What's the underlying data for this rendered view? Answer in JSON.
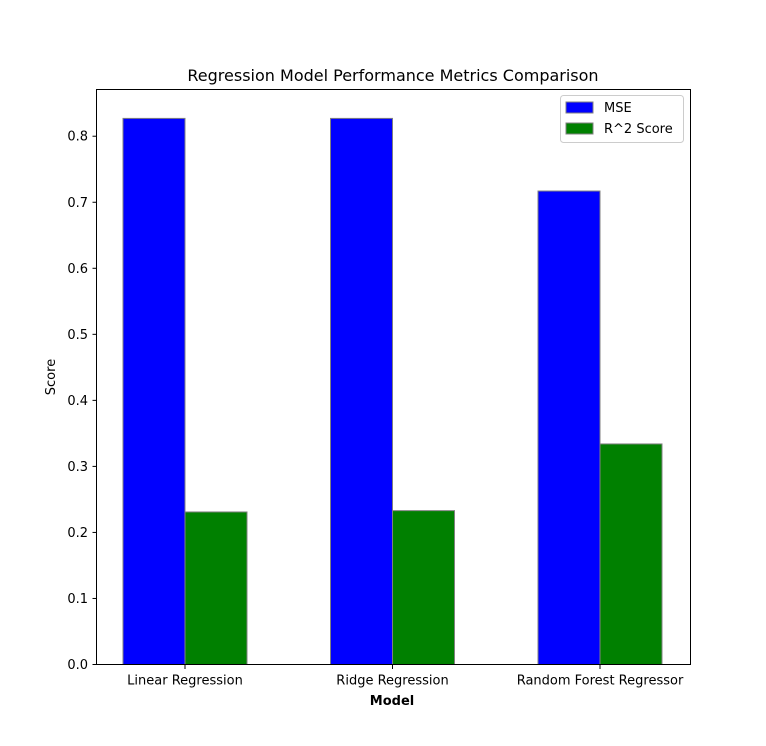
{
  "chart_data": {
    "type": "bar",
    "title": "Regression Model Performance Metrics Comparison",
    "xlabel": "Model",
    "ylabel": "Score",
    "categories": [
      "Linear Regression",
      "Ridge Regression",
      "Random Forest Regressor"
    ],
    "series": [
      {
        "name": "MSE",
        "values": [
          0.827,
          0.827,
          0.717
        ],
        "color": "#0000ff"
      },
      {
        "name": "R^2 Score",
        "values": [
          0.231,
          0.233,
          0.334
        ],
        "color": "#008000"
      }
    ],
    "yticks": [
      "0.0",
      "0.1",
      "0.2",
      "0.3",
      "0.4",
      "0.5",
      "0.6",
      "0.7",
      "0.8"
    ],
    "ylim": [
      0,
      0.87
    ],
    "grid": false,
    "legend_position": "top-right",
    "bar_edge_color": "#808080"
  }
}
